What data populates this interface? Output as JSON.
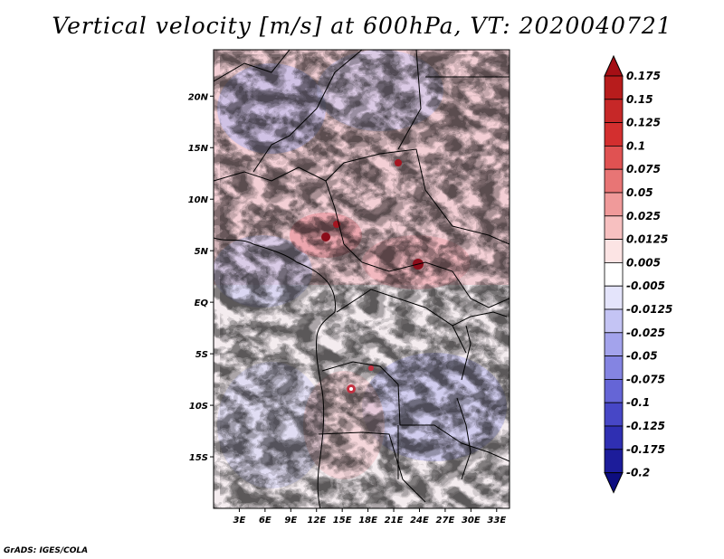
{
  "title": "Vertical velocity [m/s] at 600hPa, VT: 2020040721",
  "footer": "GrADS: IGES/COLA",
  "map": {
    "variable": "Vertical velocity",
    "units": "m/s",
    "level": "600hPa",
    "valid_time": "2020040721",
    "lon_range": [
      0,
      34.5
    ],
    "lat_range": [
      -20,
      24.5
    ],
    "lat_labels": [
      {
        "lat": 20,
        "label": "20N"
      },
      {
        "lat": 15,
        "label": "15N"
      },
      {
        "lat": 10,
        "label": "10N"
      },
      {
        "lat": 5,
        "label": "5N"
      },
      {
        "lat": 0,
        "label": "EQ"
      },
      {
        "lat": -5,
        "label": "5S"
      },
      {
        "lat": -10,
        "label": "10S"
      },
      {
        "lat": -15,
        "label": "15S"
      }
    ],
    "lon_labels": [
      {
        "lon": 3,
        "label": "3E"
      },
      {
        "lon": 6,
        "label": "6E"
      },
      {
        "lon": 9,
        "label": "9E"
      },
      {
        "lon": 12,
        "label": "12E"
      },
      {
        "lon": 15,
        "label": "15E"
      },
      {
        "lon": 18,
        "label": "18E"
      },
      {
        "lon": 21,
        "label": "21E"
      },
      {
        "lon": 24,
        "label": "24E"
      },
      {
        "lon": 27,
        "label": "27E"
      },
      {
        "lon": 30,
        "label": "30E"
      },
      {
        "lon": 33,
        "label": "33E"
      }
    ]
  },
  "colorbar": {
    "labels": [
      "0.175",
      "0.15",
      "0.125",
      "0.1",
      "0.075",
      "0.05",
      "0.025",
      "0.0125",
      "0.005",
      "-0.005",
      "-0.0125",
      "-0.025",
      "-0.05",
      "-0.075",
      "-0.1",
      "-0.125",
      "-0.175",
      "-0.2"
    ],
    "colors": [
      "#a50f15",
      "#b71c1c",
      "#c62828",
      "#d32f2f",
      "#e05252",
      "#e87575",
      "#f09a9a",
      "#f7c0c0",
      "#fce4e4",
      "#ffffff",
      "#e4e4fb",
      "#c4c4f4",
      "#a3a3ec",
      "#8484e2",
      "#6565d6",
      "#4747c6",
      "#2f2fb2",
      "#1c1c9a",
      "#0d0d80"
    ]
  }
}
